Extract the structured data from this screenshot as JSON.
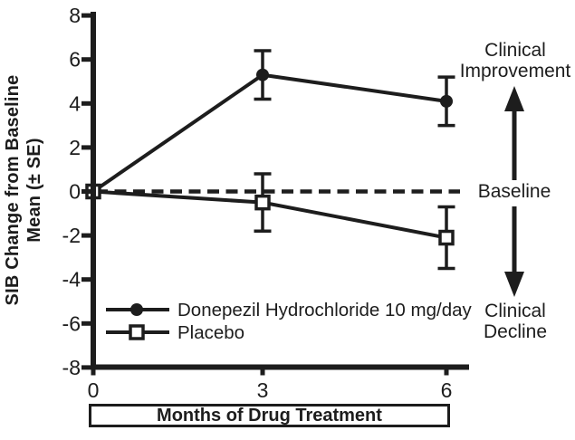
{
  "figure": {
    "background": "#ffffff",
    "ink_color": "#1d1d1d"
  },
  "y_axis": {
    "label_line1": "SIB Change from Baseline",
    "label_line2": "Mean (± SE)",
    "ticks": [
      8,
      6,
      4,
      2,
      0,
      -2,
      -4,
      -6,
      -8
    ]
  },
  "x_axis": {
    "title": "Months of Drug Treatment",
    "ticks": [
      0,
      3,
      6
    ]
  },
  "annotations": {
    "improvement_line1": "Clinical",
    "improvement_line2": "Improvement",
    "baseline": "Baseline",
    "decline_line1": "Clinical",
    "decline_line2": "Decline"
  },
  "chart_data": {
    "type": "line",
    "x": [
      0,
      3,
      6
    ],
    "series": [
      {
        "name": "Donepezil Hydrochloride 10 mg/day",
        "marker": "filled-circle",
        "values": [
          0,
          5.3,
          4.1
        ],
        "se": [
          0,
          1.1,
          1.1
        ]
      },
      {
        "name": "Placebo",
        "marker": "open-square",
        "values": [
          0,
          -0.5,
          -2.1
        ],
        "se": [
          0,
          1.3,
          1.4
        ]
      }
    ],
    "baseline_value": 0,
    "baseline_style": "dashed",
    "title": "",
    "xlabel": "Months of Drug Treatment",
    "ylabel": "SIB Change from Baseline Mean (± SE)",
    "xlim": [
      0,
      6
    ],
    "ylim": [
      -8,
      8
    ],
    "ytick_step": 2,
    "grid": false,
    "legend_position": "lower-left-inside",
    "right_axis_annotations": [
      "Clinical Improvement (up arrow)",
      "Baseline",
      "Clinical Decline (down arrow)"
    ]
  }
}
